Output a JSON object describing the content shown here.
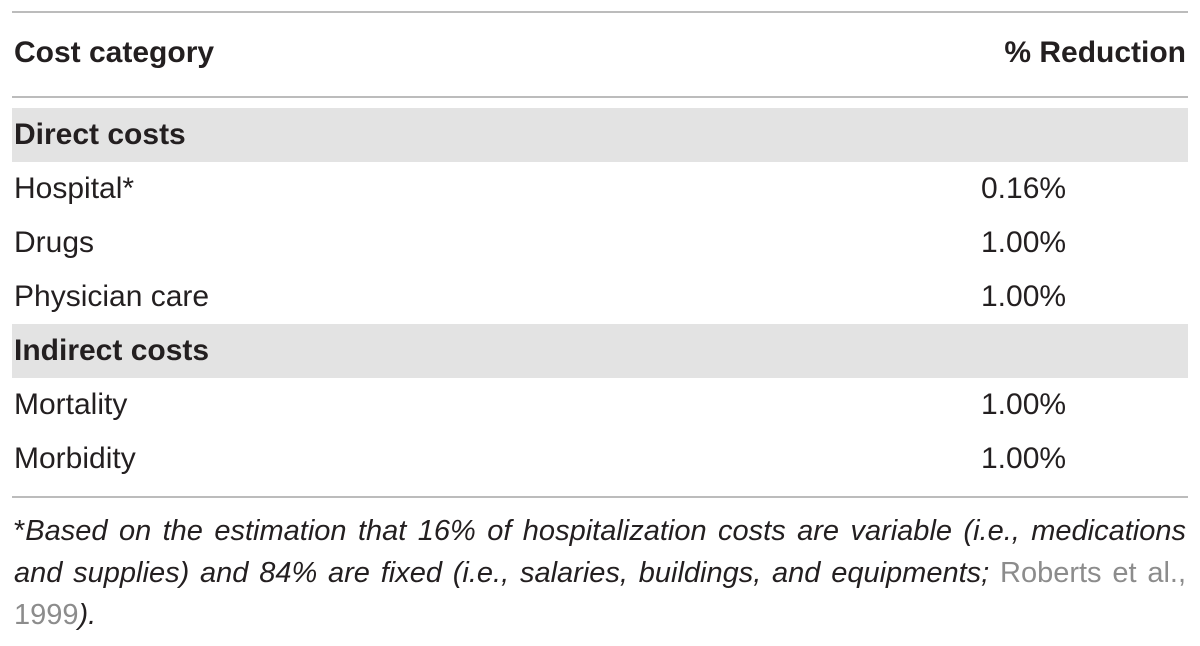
{
  "table": {
    "header": [
      "Cost category",
      "% Reduction"
    ],
    "sections": [
      {
        "title": "Direct costs",
        "rows": [
          [
            "Hospital*",
            "0.16%"
          ],
          [
            "Drugs",
            "1.00%"
          ],
          [
            "Physician care",
            "1.00%"
          ]
        ]
      },
      {
        "title": "Indirect costs",
        "rows": [
          [
            "Mortality",
            "1.00%"
          ],
          [
            "Morbidity",
            "1.00%"
          ]
        ]
      }
    ]
  },
  "footnote": {
    "marker": "*",
    "text": "Based on the estimation that 16% of hospitalization costs are variable (i.e., medications and supplies) and 84% are fixed (i.e., salaries, buildings, and equipments; ",
    "citation": "Roberts et al., 1999",
    "end": ")."
  }
}
